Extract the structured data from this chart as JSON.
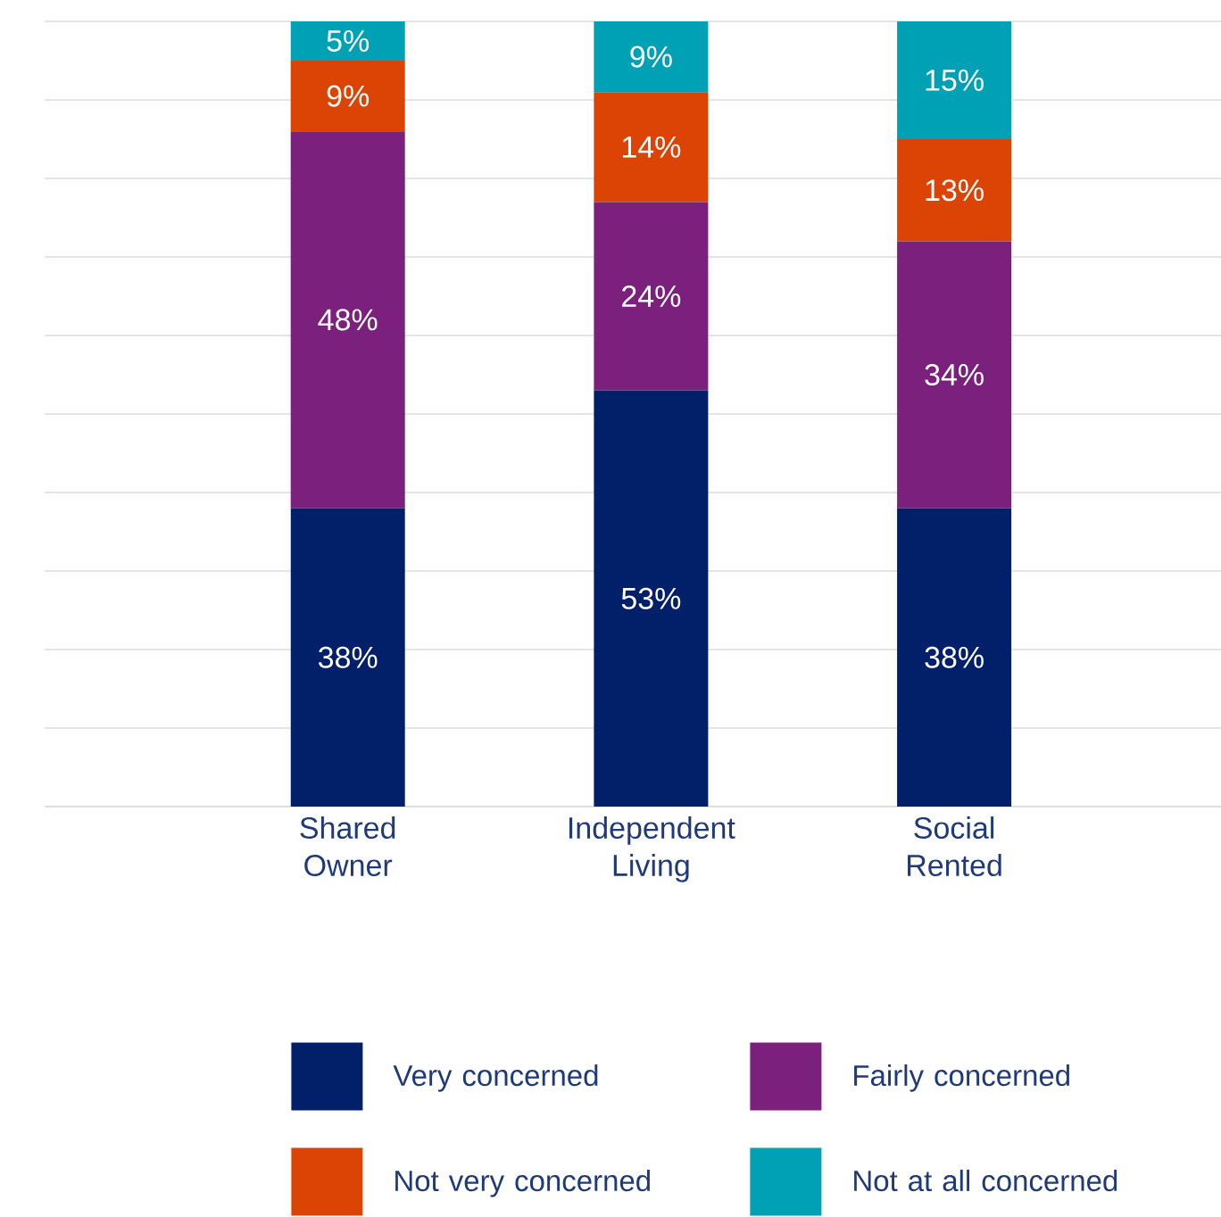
{
  "chart_data": {
    "type": "bar",
    "stacked": true,
    "categories": [
      "Shared Owner",
      "Independent Living",
      "Social Rented"
    ],
    "series": [
      {
        "name": "Very concerned",
        "color": "#02206a",
        "values": [
          38,
          53,
          38
        ],
        "value_labels": [
          "38%",
          "53%",
          "38%"
        ]
      },
      {
        "name": "Fairly concerned",
        "color": "#7b217d",
        "values": [
          48,
          24,
          34
        ],
        "value_labels": [
          "48%",
          "24%",
          "34%"
        ]
      },
      {
        "name": "Not very concerned",
        "color": "#dc4405",
        "values": [
          9,
          14,
          13
        ],
        "value_labels": [
          "9%",
          "14%",
          "13%"
        ]
      },
      {
        "name": "Not at all concerned",
        "color": "#00a0b5",
        "values": [
          5,
          9,
          15
        ],
        "value_labels": [
          "5%",
          "9%",
          "15%"
        ]
      }
    ],
    "ylim": [
      0,
      100
    ],
    "yticks": [
      {
        "value": 0,
        "label": null
      },
      {
        "value": 10,
        "label": null
      },
      {
        "value": 20,
        "label": null
      },
      {
        "value": 30,
        "label": null
      },
      {
        "value": 40,
        "label": null
      },
      {
        "value": 50,
        "label": null
      },
      {
        "value": 60,
        "label": null
      },
      {
        "value": 70,
        "label": null
      },
      {
        "value": 80,
        "label": null
      },
      {
        "value": 90,
        "label": null
      },
      {
        "value": 100,
        "label": null
      }
    ],
    "grid": "y",
    "tick_labels": "x",
    "legend": "bottom"
  }
}
